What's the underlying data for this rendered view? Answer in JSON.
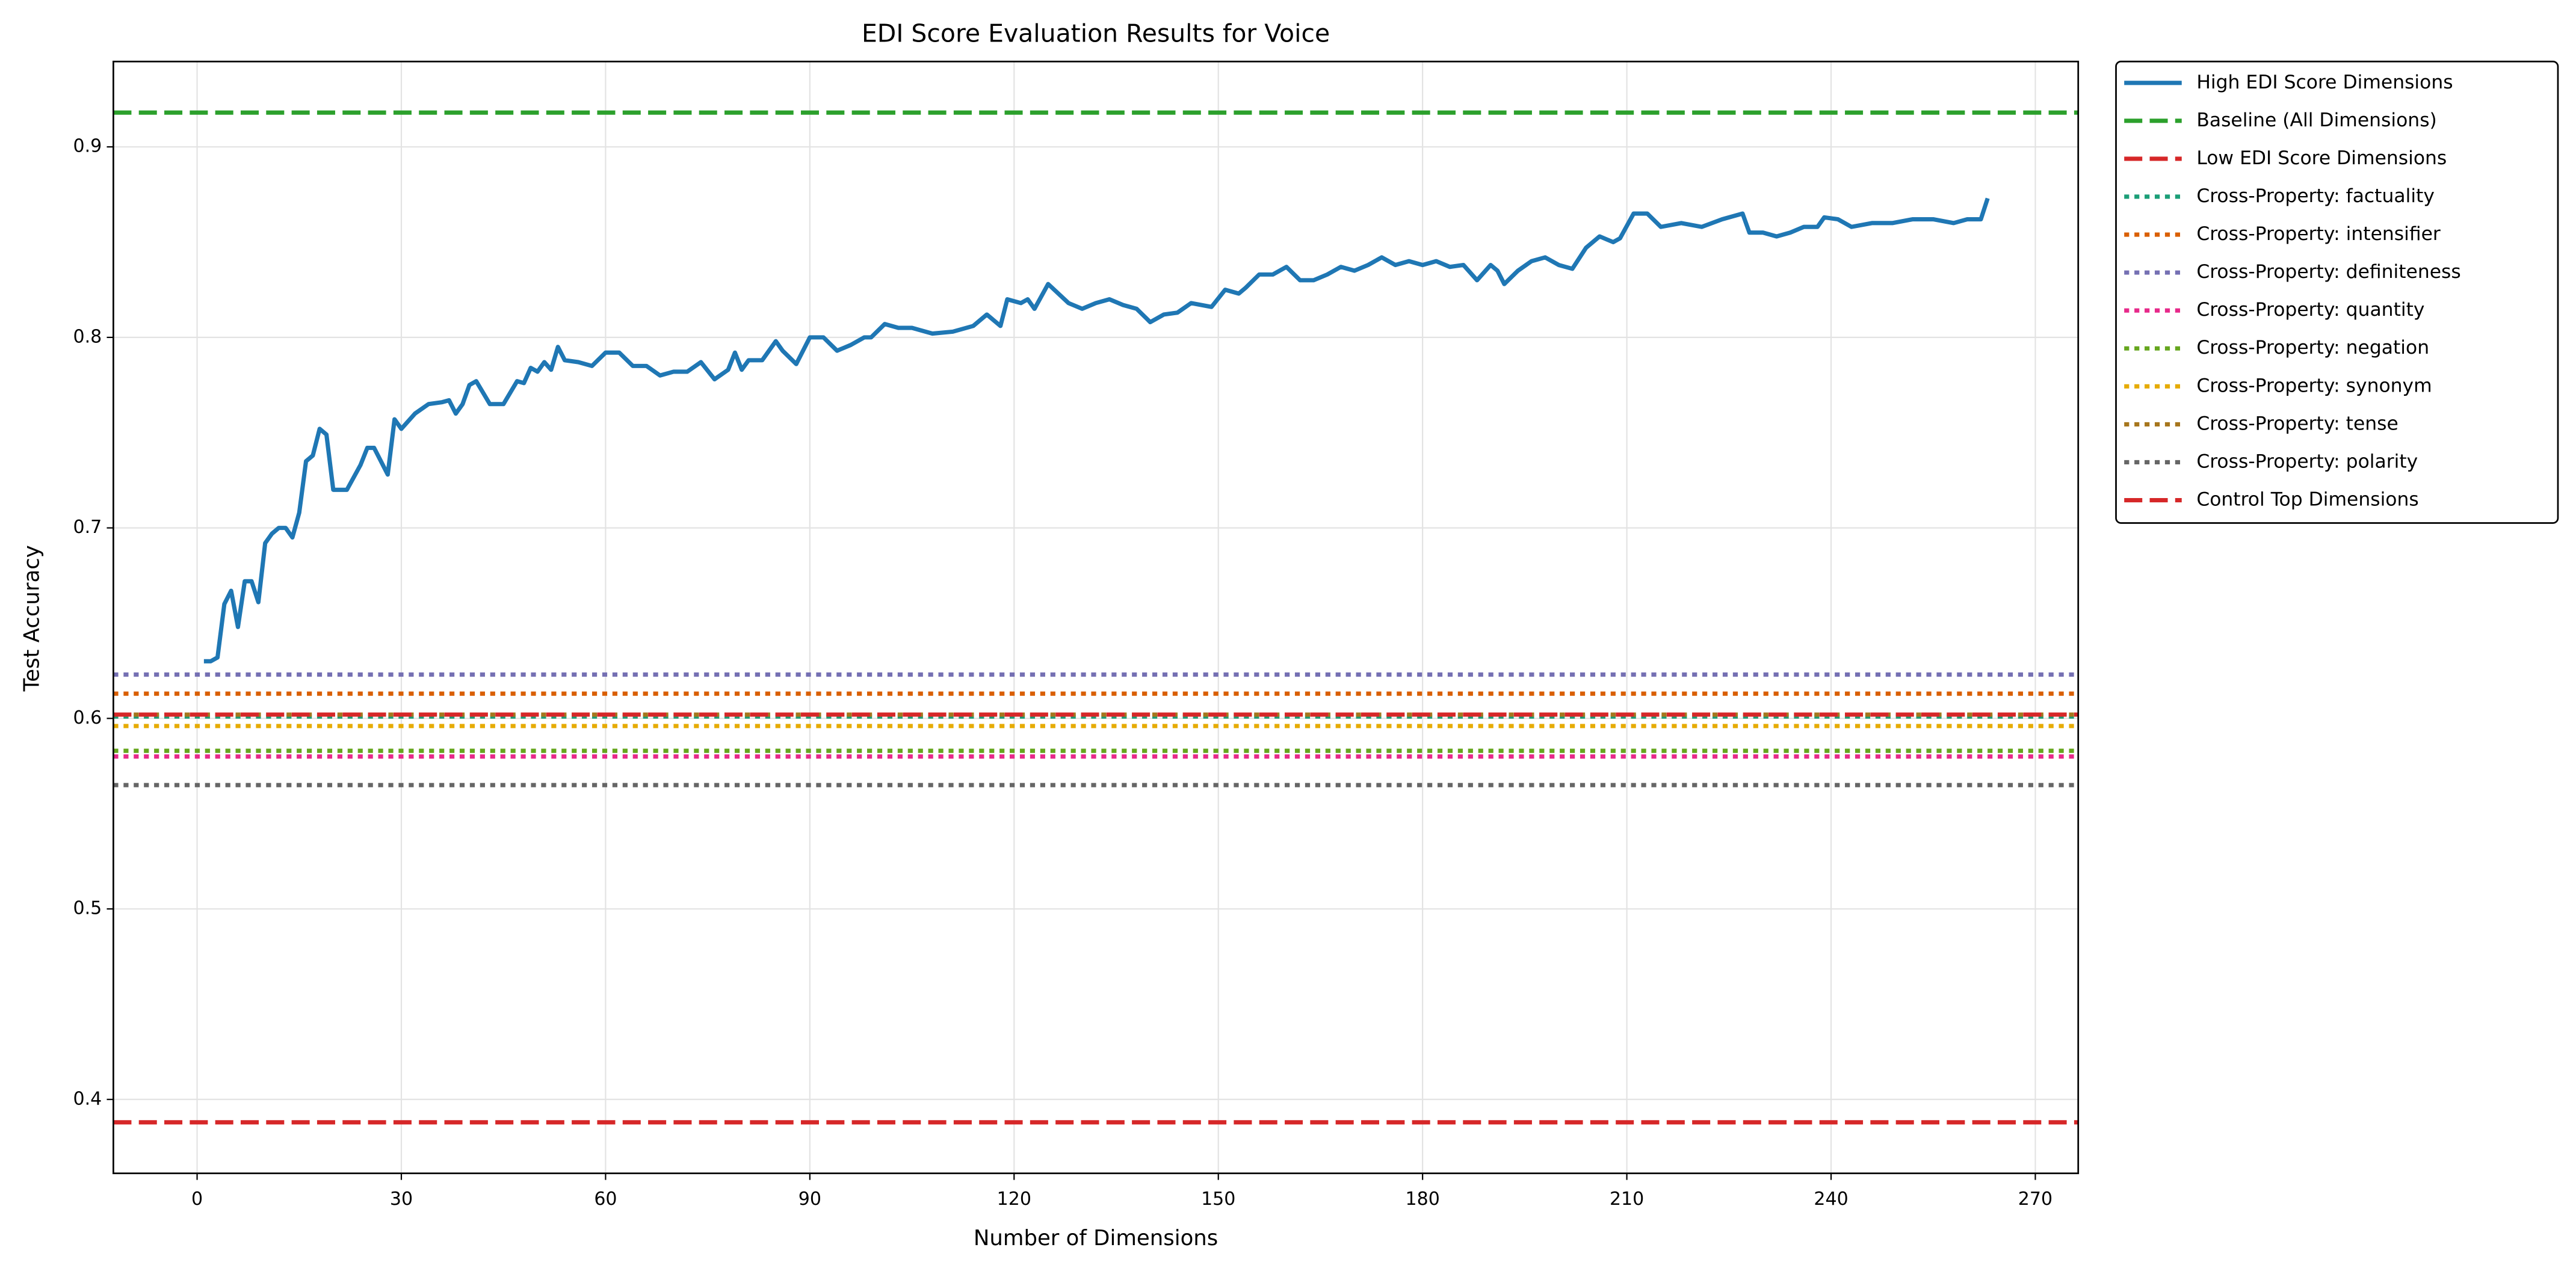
{
  "chart_data": {
    "type": "line",
    "title": "EDI Score Evaluation Results for Voice",
    "xlabel": "Number of Dimensions",
    "ylabel": "Test Accuracy",
    "xlim": [
      -12.3,
      276.3
    ],
    "ylim": [
      0.3612,
      0.9448
    ],
    "xticks": [
      0,
      30,
      60,
      90,
      120,
      150,
      180,
      210,
      240,
      270
    ],
    "yticks": [
      0.4,
      0.5,
      0.6,
      0.7,
      0.8,
      0.9
    ],
    "grid": true,
    "legend": "outside-upper-right",
    "series": [
      {
        "name": "High EDI Score Dimensions",
        "color": "#1f77b4",
        "style": "solid",
        "x": [
          1,
          2,
          3,
          4,
          5,
          6,
          7,
          8,
          9,
          10,
          11,
          12,
          13,
          14,
          15,
          16,
          17,
          18,
          19,
          20,
          22,
          24,
          25,
          26,
          28,
          29,
          30,
          32,
          34,
          36,
          37,
          38,
          39,
          40,
          41,
          43,
          45,
          47,
          48,
          49,
          50,
          51,
          52,
          53,
          54,
          56,
          58,
          60,
          62,
          64,
          66,
          68,
          70,
          72,
          74,
          76,
          78,
          79,
          80,
          81,
          83,
          85,
          86,
          88,
          90,
          92,
          94,
          96,
          98,
          99,
          101,
          103,
          105,
          108,
          111,
          114,
          116,
          118,
          119,
          121,
          122,
          123,
          125,
          128,
          130,
          132,
          134,
          136,
          138,
          140,
          142,
          144,
          146,
          149,
          151,
          153,
          154,
          156,
          158,
          160,
          162,
          164,
          166,
          168,
          170,
          172,
          174,
          176,
          178,
          180,
          182,
          184,
          186,
          188,
          190,
          191,
          192,
          194,
          196,
          198,
          200,
          202,
          204,
          206,
          208,
          209,
          211,
          213,
          215,
          218,
          221,
          224,
          227,
          228,
          230,
          232,
          234,
          236,
          238,
          239,
          241,
          243,
          246,
          249,
          252,
          255,
          258,
          260,
          262,
          263
        ],
        "values": [
          0.63,
          0.63,
          0.632,
          0.66,
          0.667,
          0.648,
          0.672,
          0.672,
          0.661,
          0.692,
          0.697,
          0.7,
          0.7,
          0.695,
          0.708,
          0.735,
          0.738,
          0.752,
          0.749,
          0.72,
          0.72,
          0.733,
          0.742,
          0.742,
          0.728,
          0.757,
          0.752,
          0.76,
          0.765,
          0.766,
          0.767,
          0.76,
          0.765,
          0.775,
          0.777,
          0.765,
          0.765,
          0.777,
          0.776,
          0.784,
          0.782,
          0.787,
          0.783,
          0.795,
          0.788,
          0.787,
          0.785,
          0.792,
          0.792,
          0.785,
          0.785,
          0.78,
          0.782,
          0.782,
          0.787,
          0.778,
          0.783,
          0.792,
          0.783,
          0.788,
          0.788,
          0.798,
          0.793,
          0.786,
          0.8,
          0.8,
          0.793,
          0.796,
          0.8,
          0.8,
          0.807,
          0.805,
          0.805,
          0.802,
          0.803,
          0.806,
          0.812,
          0.806,
          0.82,
          0.818,
          0.82,
          0.815,
          0.828,
          0.818,
          0.815,
          0.818,
          0.82,
          0.817,
          0.815,
          0.808,
          0.812,
          0.813,
          0.818,
          0.816,
          0.825,
          0.823,
          0.826,
          0.833,
          0.833,
          0.837,
          0.83,
          0.83,
          0.833,
          0.837,
          0.835,
          0.838,
          0.842,
          0.838,
          0.84,
          0.838,
          0.84,
          0.837,
          0.838,
          0.83,
          0.838,
          0.835,
          0.828,
          0.835,
          0.84,
          0.842,
          0.838,
          0.836,
          0.847,
          0.853,
          0.85,
          0.852,
          0.865,
          0.865,
          0.858,
          0.86,
          0.858,
          0.862,
          0.865,
          0.855,
          0.855,
          0.853,
          0.855,
          0.858,
          0.858,
          0.863,
          0.862,
          0.858,
          0.86,
          0.86,
          0.862,
          0.862,
          0.86,
          0.862,
          0.862,
          0.873
        ]
      },
      {
        "name": "Baseline (All Dimensions)",
        "color": "#2ca02c",
        "style": "dashed",
        "value": 0.918
      },
      {
        "name": "Low EDI Score Dimensions",
        "color": "#d62728",
        "style": "dashed",
        "value": 0.388
      },
      {
        "name": "Cross-Property: factuality",
        "color": "#1b9e77",
        "style": "dotted",
        "value": 0.601
      },
      {
        "name": "Cross-Property: intensifier",
        "color": "#d95f02",
        "style": "dotted",
        "value": 0.613
      },
      {
        "name": "Cross-Property: definiteness",
        "color": "#7570b3",
        "style": "dotted",
        "value": 0.623
      },
      {
        "name": "Cross-Property: quantity",
        "color": "#e7298a",
        "style": "dotted",
        "value": 0.58
      },
      {
        "name": "Cross-Property: negation",
        "color": "#66a61e",
        "style": "dotted",
        "value": 0.583
      },
      {
        "name": "Cross-Property: synonym",
        "color": "#e6ab02",
        "style": "dotted",
        "value": 0.596
      },
      {
        "name": "Cross-Property: tense",
        "color": "#a6761d",
        "style": "dotted",
        "value": 0.602
      },
      {
        "name": "Cross-Property: polarity",
        "color": "#666666",
        "style": "dotted",
        "value": 0.565
      },
      {
        "name": "Control Top Dimensions",
        "color": "#d62728",
        "style": "dashed",
        "value": 0.602
      }
    ]
  }
}
